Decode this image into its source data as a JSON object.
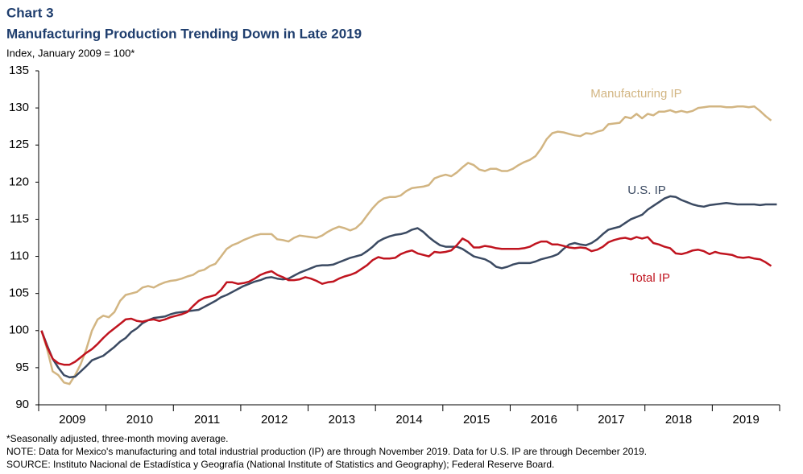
{
  "chart_data": {
    "type": "line",
    "kicker": "Chart 3",
    "title": "Manufacturing Production Trending Down in Late 2019",
    "subtitle": "Index, January 2009 = 100*",
    "notes": [
      "*Seasonally adjusted, three-month moving average.",
      "NOTE: Data for Mexico's manufacturing and total industrial production (IP) are through November 2019. Data for U.S. IP are through December 2019.",
      "SOURCE: Instituto Nacional de Estadística y Geografía (National Institute of Statistics and Geography); Federal Reserve Board."
    ],
    "categories": [
      null,
      null,
      null,
      null,
      null,
      null,
      "2009",
      null,
      null,
      null,
      null,
      null,
      null,
      null,
      null,
      null,
      null,
      null,
      "2010",
      null,
      null,
      null,
      null,
      null,
      null,
      null,
      null,
      null,
      null,
      null,
      "2011",
      null,
      null,
      null,
      null,
      null,
      null,
      null,
      null,
      null,
      null,
      null,
      "2012",
      null,
      null,
      null,
      null,
      null,
      null,
      null,
      null,
      null,
      null,
      null,
      "2013",
      null,
      null,
      null,
      null,
      null,
      null,
      null,
      null,
      null,
      null,
      null,
      "2014",
      null,
      null,
      null,
      null,
      null,
      null,
      null,
      null,
      null,
      null,
      null,
      "2015",
      null,
      null,
      null,
      null,
      null,
      null,
      null,
      null,
      null,
      null,
      null,
      "2016",
      null,
      null,
      null,
      null,
      null,
      null,
      null,
      null,
      null,
      null,
      null,
      "2017",
      null,
      null,
      null,
      null,
      null,
      null,
      null,
      null,
      null,
      null,
      null,
      "2018",
      null,
      null,
      null,
      null,
      null,
      null,
      null,
      null,
      null,
      null,
      null,
      "2019",
      null,
      null,
      null,
      null,
      null
    ],
    "ylim": [
      90,
      135
    ],
    "yticks": [
      90,
      95,
      100,
      105,
      110,
      115,
      120,
      125,
      130,
      135
    ],
    "series": [
      {
        "name": "Manufacturing IP",
        "color": "#d2b582",
        "values": [
          100,
          97.5,
          94.5,
          94,
          93,
          92.8,
          94,
          95.5,
          97.5,
          100,
          101.5,
          102,
          101.8,
          102.5,
          104,
          104.8,
          105,
          105.2,
          105.8,
          106,
          105.8,
          106.2,
          106.5,
          106.7,
          106.8,
          107,
          107.3,
          107.5,
          108,
          108.2,
          108.7,
          109,
          110,
          111,
          111.5,
          111.8,
          112.2,
          112.5,
          112.8,
          113,
          113,
          113,
          112.3,
          112.2,
          112,
          112.5,
          112.8,
          112.7,
          112.6,
          112.5,
          112.8,
          113.3,
          113.7,
          114,
          113.8,
          113.5,
          113.8,
          114.5,
          115.5,
          116.5,
          117.3,
          117.8,
          118,
          118,
          118.2,
          118.8,
          119.2,
          119.3,
          119.4,
          119.6,
          120.5,
          120.8,
          121,
          120.8,
          121.3,
          122,
          122.6,
          122.3,
          121.7,
          121.5,
          121.8,
          121.8,
          121.5,
          121.5,
          121.8,
          122.3,
          122.7,
          123,
          123.5,
          124.5,
          125.8,
          126.6,
          126.8,
          126.7,
          126.5,
          126.3,
          126.2,
          126.6,
          126.5,
          126.8,
          127,
          127.8,
          127.9,
          128,
          128.8,
          128.6,
          129.2,
          128.6,
          129.2,
          129,
          129.5,
          129.5,
          129.7,
          129.4,
          129.6,
          129.4,
          129.6,
          130,
          130.1,
          130.2,
          130.2,
          130.2,
          130.1,
          130.1,
          130.2,
          130.2,
          130.1,
          130.2,
          129.6,
          128.9,
          128.3,
          null
        ]
      },
      {
        "name": "U.S. IP",
        "color": "#3b4a62",
        "values": [
          100,
          98,
          96.2,
          95,
          94,
          93.7,
          93.8,
          94.5,
          95.2,
          96,
          96.3,
          96.6,
          97.2,
          97.8,
          98.5,
          99,
          99.8,
          100.3,
          101,
          101.4,
          101.7,
          101.8,
          101.9,
          102.2,
          102.4,
          102.5,
          102.6,
          102.7,
          102.8,
          103.2,
          103.6,
          104,
          104.5,
          104.8,
          105.2,
          105.6,
          106,
          106.3,
          106.6,
          106.8,
          107.1,
          107.2,
          107,
          106.9,
          107,
          107.4,
          107.8,
          108.1,
          108.4,
          108.7,
          108.8,
          108.8,
          108.9,
          109.2,
          109.5,
          109.8,
          110,
          110.2,
          110.7,
          111.3,
          112,
          112.4,
          112.7,
          112.9,
          113,
          113.2,
          113.6,
          113.8,
          113.3,
          112.6,
          112,
          111.5,
          111.3,
          111.3,
          111.3,
          111,
          110.5,
          110,
          109.8,
          109.6,
          109.2,
          108.6,
          108.4,
          108.6,
          108.9,
          109.1,
          109.1,
          109.1,
          109.3,
          109.6,
          109.8,
          110,
          110.3,
          111,
          111.6,
          111.8,
          111.6,
          111.5,
          111.8,
          112.3,
          113,
          113.6,
          113.8,
          114,
          114.5,
          115,
          115.3,
          115.6,
          116.3,
          116.8,
          117.3,
          117.8,
          118.1,
          118,
          117.6,
          117.3,
          117,
          116.8,
          116.7,
          116.9,
          117,
          117.1,
          117.2,
          117.1,
          117,
          117,
          117,
          117,
          116.9,
          117,
          117,
          117
        ]
      },
      {
        "name": "Total IP",
        "color": "#c0141f",
        "values": [
          100,
          97.8,
          96.2,
          95.6,
          95.4,
          95.4,
          95.8,
          96.4,
          97,
          97.5,
          98.2,
          99,
          99.7,
          100.3,
          100.9,
          101.5,
          101.6,
          101.3,
          101.2,
          101.4,
          101.5,
          101.3,
          101.5,
          101.8,
          102,
          102.2,
          102.5,
          103.3,
          104,
          104.4,
          104.6,
          104.8,
          105.5,
          106.5,
          106.5,
          106.3,
          106.4,
          106.6,
          107,
          107.5,
          107.8,
          108,
          107.5,
          107.2,
          106.8,
          106.8,
          106.9,
          107.2,
          107,
          106.7,
          106.3,
          106.5,
          106.6,
          107,
          107.3,
          107.5,
          107.8,
          108.3,
          108.8,
          109.5,
          109.9,
          109.7,
          109.7,
          109.8,
          110.3,
          110.6,
          110.8,
          110.4,
          110.2,
          110,
          110.6,
          110.5,
          110.6,
          110.8,
          111.5,
          112.4,
          112,
          111.2,
          111.2,
          111.4,
          111.3,
          111.1,
          111,
          111,
          111,
          111,
          111.1,
          111.3,
          111.7,
          112,
          112,
          111.6,
          111.6,
          111.4,
          111.2,
          111.1,
          111.2,
          111.1,
          110.7,
          110.9,
          111.3,
          111.9,
          112.2,
          112.4,
          112.5,
          112.3,
          112.6,
          112.4,
          112.6,
          111.8,
          111.6,
          111.3,
          111.1,
          110.4,
          110.3,
          110.5,
          110.8,
          110.9,
          110.7,
          110.3,
          110.6,
          110.4,
          110.3,
          110.2,
          109.9,
          109.8,
          109.9,
          109.7,
          109.6,
          109.2,
          108.7,
          null
        ]
      }
    ]
  }
}
